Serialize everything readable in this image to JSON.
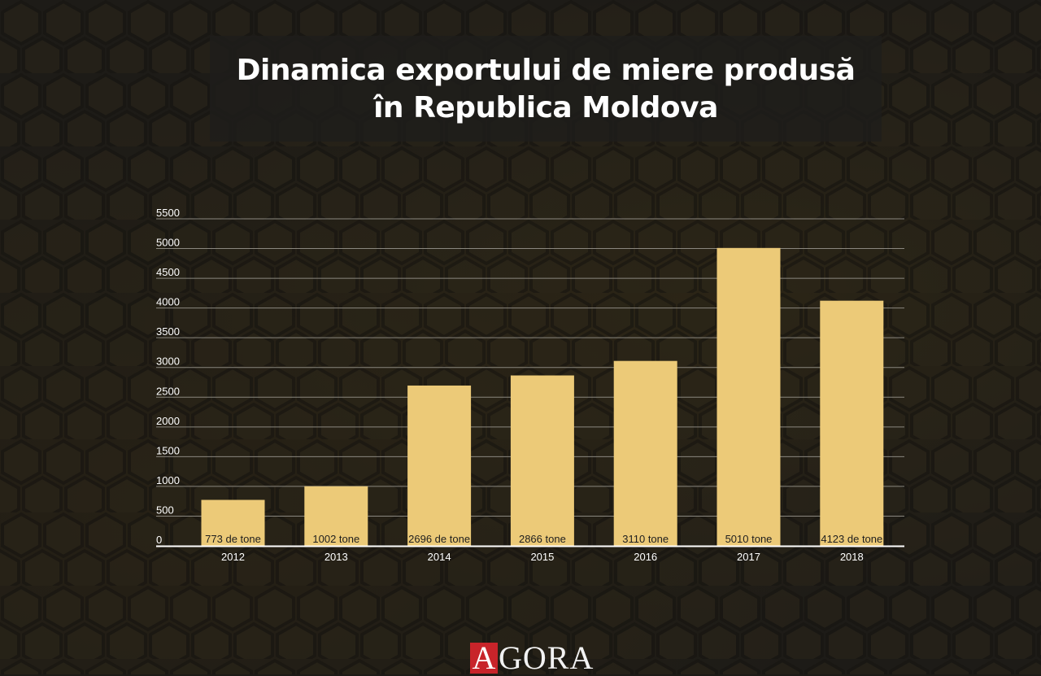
{
  "header": {
    "title_line1": "Dinamica exportului de miere produsă",
    "title_line2": "în Republica Moldova"
  },
  "logo": {
    "first_letter": "A",
    "rest": "GORA",
    "accent_color": "#c8242a"
  },
  "colors": {
    "bar": "#ecca78",
    "grid": "#8a877f",
    "axis": "#ffffff",
    "text": "#ffffff",
    "label": "#1e1e1e"
  },
  "chart_data": {
    "type": "bar",
    "title": "Dinamica exportului de miere produsă în Republica Moldova",
    "categories": [
      "2012",
      "2013",
      "2014",
      "2015",
      "2016",
      "2017",
      "2018"
    ],
    "values": [
      773,
      1002,
      2696,
      2866,
      3110,
      5010,
      4123
    ],
    "data_labels": [
      "773 de tone",
      "1002 tone",
      "2696 de tone",
      "2866 tone",
      "3110 tone",
      "5010 tone",
      "4123 de tone"
    ],
    "ylim": [
      0,
      5500
    ],
    "yticks": [
      0,
      500,
      1000,
      1500,
      2000,
      2500,
      3000,
      3500,
      4000,
      4500,
      5000,
      5500
    ],
    "xlabel": "",
    "ylabel": "",
    "grid": true,
    "legend": "none"
  }
}
